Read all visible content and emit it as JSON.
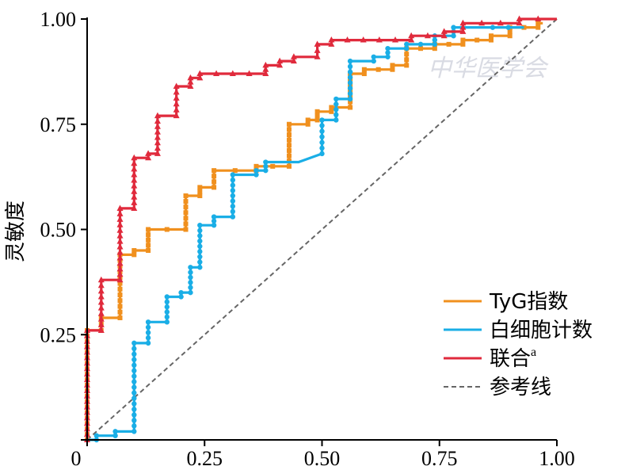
{
  "chart_data": {
    "type": "line",
    "ylabel": "灵敏度",
    "xlabel": "",
    "xlim": [
      0,
      1
    ],
    "ylim": [
      0,
      1
    ],
    "x_ticks": [
      "0",
      "0.25",
      "0.50",
      "0.75",
      "1.00"
    ],
    "y_ticks": [
      "0",
      "0.25",
      "0.50",
      "0.75",
      "1.00"
    ],
    "legend_position": "bottom-right",
    "grid": false,
    "watermark": "中华医学会",
    "series": [
      {
        "name": "TyG指数",
        "color": "#f0901e",
        "marker": "square",
        "points": [
          [
            0,
            0
          ],
          [
            0,
            0.26
          ],
          [
            0.03,
            0.26
          ],
          [
            0.03,
            0.29
          ],
          [
            0.07,
            0.29
          ],
          [
            0.07,
            0.44
          ],
          [
            0.1,
            0.44
          ],
          [
            0.1,
            0.45
          ],
          [
            0.13,
            0.45
          ],
          [
            0.13,
            0.5
          ],
          [
            0.21,
            0.5
          ],
          [
            0.21,
            0.58
          ],
          [
            0.24,
            0.58
          ],
          [
            0.24,
            0.6
          ],
          [
            0.27,
            0.6
          ],
          [
            0.27,
            0.64
          ],
          [
            0.36,
            0.64
          ],
          [
            0.36,
            0.65
          ],
          [
            0.43,
            0.65
          ],
          [
            0.43,
            0.75
          ],
          [
            0.47,
            0.75
          ],
          [
            0.47,
            0.76
          ],
          [
            0.49,
            0.76
          ],
          [
            0.49,
            0.78
          ],
          [
            0.52,
            0.78
          ],
          [
            0.52,
            0.79
          ],
          [
            0.56,
            0.79
          ],
          [
            0.56,
            0.87
          ],
          [
            0.59,
            0.87
          ],
          [
            0.59,
            0.88
          ],
          [
            0.65,
            0.88
          ],
          [
            0.65,
            0.89
          ],
          [
            0.68,
            0.89
          ],
          [
            0.68,
            0.93
          ],
          [
            0.74,
            0.93
          ],
          [
            0.74,
            0.94
          ],
          [
            0.8,
            0.94
          ],
          [
            0.8,
            0.95
          ],
          [
            0.86,
            0.95
          ],
          [
            0.86,
            0.96
          ],
          [
            0.9,
            0.96
          ],
          [
            0.9,
            0.98
          ],
          [
            0.96,
            0.98
          ],
          [
            0.96,
            0.99
          ],
          [
            0.97,
            0.99
          ]
        ]
      },
      {
        "name": "白细胞计数",
        "color": "#1aaee6",
        "marker": "circle",
        "points": [
          [
            0,
            0
          ],
          [
            0.02,
            0
          ],
          [
            0.02,
            0.01
          ],
          [
            0.06,
            0.01
          ],
          [
            0.06,
            0.02
          ],
          [
            0.1,
            0.02
          ],
          [
            0.1,
            0.23
          ],
          [
            0.13,
            0.23
          ],
          [
            0.13,
            0.28
          ],
          [
            0.17,
            0.28
          ],
          [
            0.17,
            0.34
          ],
          [
            0.2,
            0.34
          ],
          [
            0.2,
            0.35
          ],
          [
            0.22,
            0.35
          ],
          [
            0.22,
            0.41
          ],
          [
            0.24,
            0.41
          ],
          [
            0.24,
            0.51
          ],
          [
            0.27,
            0.51
          ],
          [
            0.27,
            0.53
          ],
          [
            0.31,
            0.53
          ],
          [
            0.31,
            0.63
          ],
          [
            0.36,
            0.63
          ],
          [
            0.36,
            0.64
          ],
          [
            0.38,
            0.64
          ],
          [
            0.38,
            0.66
          ],
          [
            0.43,
            0.66
          ],
          [
            0.45,
            0.66
          ],
          [
            0.5,
            0.68
          ],
          [
            0.5,
            0.76
          ],
          [
            0.53,
            0.76
          ],
          [
            0.53,
            0.81
          ],
          [
            0.56,
            0.81
          ],
          [
            0.56,
            0.9
          ],
          [
            0.61,
            0.9
          ],
          [
            0.61,
            0.91
          ],
          [
            0.64,
            0.91
          ],
          [
            0.64,
            0.93
          ],
          [
            0.68,
            0.93
          ],
          [
            0.68,
            0.94
          ],
          [
            0.74,
            0.94
          ],
          [
            0.74,
            0.96
          ],
          [
            0.78,
            0.96
          ],
          [
            0.78,
            0.98
          ],
          [
            0.83,
            0.98
          ],
          [
            0.93,
            0.98
          ]
        ]
      },
      {
        "name": "联合",
        "name_superscript": "a",
        "color": "#e02a3c",
        "marker": "triangle",
        "points": [
          [
            0,
            0
          ],
          [
            0,
            0.26
          ],
          [
            0.03,
            0.26
          ],
          [
            0.03,
            0.38
          ],
          [
            0.07,
            0.38
          ],
          [
            0.07,
            0.55
          ],
          [
            0.1,
            0.55
          ],
          [
            0.1,
            0.67
          ],
          [
            0.13,
            0.67
          ],
          [
            0.13,
            0.68
          ],
          [
            0.15,
            0.68
          ],
          [
            0.15,
            0.77
          ],
          [
            0.19,
            0.77
          ],
          [
            0.19,
            0.84
          ],
          [
            0.22,
            0.84
          ],
          [
            0.22,
            0.86
          ],
          [
            0.24,
            0.86
          ],
          [
            0.24,
            0.87
          ],
          [
            0.38,
            0.87
          ],
          [
            0.38,
            0.89
          ],
          [
            0.41,
            0.89
          ],
          [
            0.41,
            0.9
          ],
          [
            0.44,
            0.9
          ],
          [
            0.44,
            0.91
          ],
          [
            0.49,
            0.91
          ],
          [
            0.49,
            0.94
          ],
          [
            0.52,
            0.94
          ],
          [
            0.52,
            0.95
          ],
          [
            0.69,
            0.95
          ],
          [
            0.69,
            0.96
          ],
          [
            0.76,
            0.96
          ],
          [
            0.76,
            0.97
          ],
          [
            0.8,
            0.97
          ],
          [
            0.8,
            0.99
          ],
          [
            0.92,
            0.99
          ],
          [
            0.92,
            1
          ],
          [
            1,
            1
          ]
        ]
      },
      {
        "name": "参考线",
        "color": "#666666",
        "dashed": true,
        "points": [
          [
            0,
            0
          ],
          [
            1,
            1
          ]
        ]
      }
    ]
  }
}
